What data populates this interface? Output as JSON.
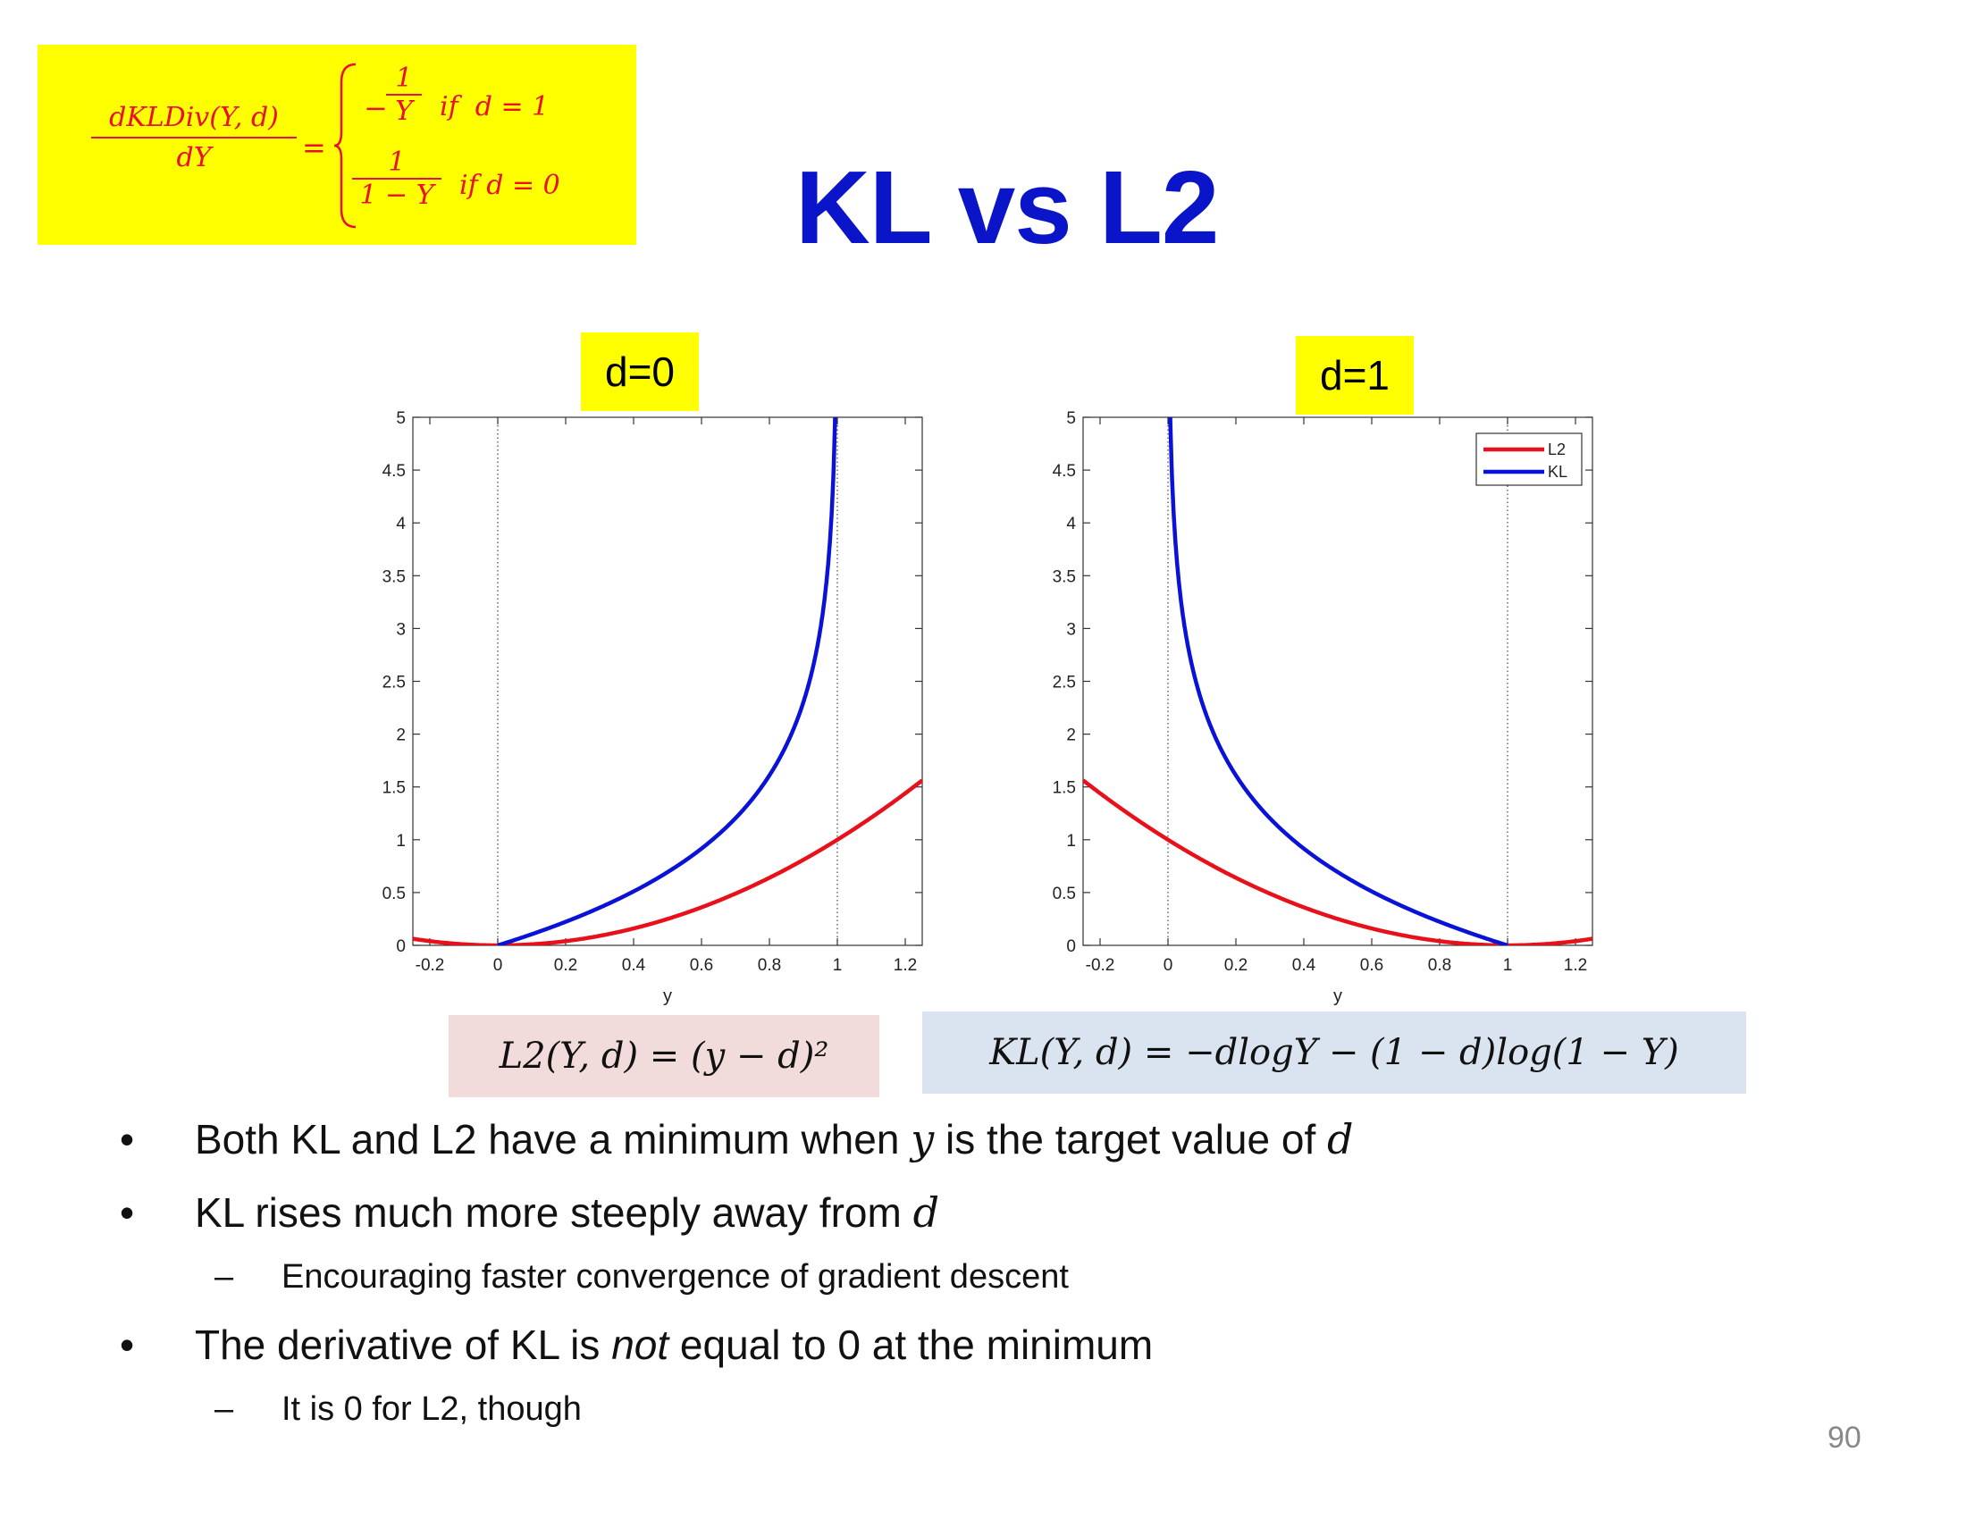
{
  "title": "KL vs L2",
  "formula": {
    "lhs_num": "dKLDiv(Y, d)",
    "lhs_den": "dY",
    "eq": "=",
    "case1_sign": "−",
    "case1_num": "1",
    "case1_den": "Y",
    "case1_cond": "if  d = 1",
    "case2_num": "1",
    "case2_den": "1 − Y",
    "case2_cond": "if d = 0"
  },
  "charts": {
    "left_label": "d=0",
    "right_label": "d=1",
    "y_ticks": [
      "0",
      "0.5",
      "1",
      "1.5",
      "2",
      "2.5",
      "3",
      "3.5",
      "4",
      "4.5",
      "5"
    ],
    "x_ticks": [
      "-0.2",
      "0",
      "0.2",
      "0.4",
      "0.6",
      "0.8",
      "1",
      "1.2"
    ],
    "x_label": "y",
    "legend": [
      "L2",
      "KL"
    ],
    "colors": {
      "L2": "#e8101a",
      "KL": "#0a12d8"
    }
  },
  "chart_data": [
    {
      "type": "line",
      "title": "d=0",
      "xlabel": "y",
      "ylabel": "",
      "xlim": [
        -0.25,
        1.25
      ],
      "ylim": [
        0,
        5
      ],
      "grid": false,
      "series": [
        {
          "name": "L2",
          "function": "(y-0)^2",
          "x": [
            -0.25,
            0,
            0.25,
            0.5,
            0.75,
            1,
            1.25
          ],
          "y": [
            0.0625,
            0,
            0.0625,
            0.25,
            0.5625,
            1,
            1.5625
          ]
        },
        {
          "name": "KL",
          "function": "-log(1-y)",
          "x": [
            0,
            0.2,
            0.4,
            0.6,
            0.8,
            0.9,
            0.95,
            0.99
          ],
          "y": [
            0,
            0.223,
            0.511,
            0.916,
            1.609,
            2.303,
            2.996,
            4.605
          ]
        }
      ]
    },
    {
      "type": "line",
      "title": "d=1",
      "xlabel": "y",
      "ylabel": "",
      "xlim": [
        -0.25,
        1.25
      ],
      "ylim": [
        0,
        5
      ],
      "grid": false,
      "legend": "top-right",
      "series": [
        {
          "name": "L2",
          "function": "(y-1)^2",
          "x": [
            -0.25,
            0,
            0.25,
            0.5,
            0.75,
            1,
            1.25
          ],
          "y": [
            1.5625,
            1,
            0.5625,
            0.25,
            0.0625,
            0,
            0.0625
          ]
        },
        {
          "name": "KL",
          "function": "-log(y)",
          "x": [
            0.01,
            0.05,
            0.1,
            0.2,
            0.4,
            0.6,
            0.8,
            1
          ],
          "y": [
            4.605,
            2.996,
            2.303,
            1.609,
            0.916,
            0.511,
            0.223,
            0
          ]
        }
      ]
    }
  ],
  "equations": {
    "l2": "L2(Y, d) = (y − d)²",
    "kl": "KL(Y, d) = −dlogY − (1 − d)log(1 − Y)"
  },
  "bullets": [
    {
      "level": 1,
      "marker": "•",
      "parts": [
        {
          "t": "Both KL and L2 have a minimum when "
        },
        {
          "t": "y",
          "i": true
        },
        {
          "t": " is the target value of "
        },
        {
          "t": "d",
          "i": true
        }
      ]
    },
    {
      "level": 1,
      "marker": "•",
      "parts": [
        {
          "t": "KL rises much more steeply away from "
        },
        {
          "t": "d",
          "i": true
        }
      ]
    },
    {
      "level": 2,
      "marker": "–",
      "parts": [
        {
          "t": "Encouraging faster convergence of gradient descent"
        }
      ]
    },
    {
      "level": 1,
      "marker": "•",
      "parts": [
        {
          "t": "The derivative of KL is "
        },
        {
          "t": "not",
          "em": true
        },
        {
          "t": " equal to 0 at the minimum"
        }
      ]
    },
    {
      "level": 2,
      "marker": "–",
      "parts": [
        {
          "t": "It is 0 for L2, though"
        }
      ]
    }
  ],
  "page_number": "90"
}
